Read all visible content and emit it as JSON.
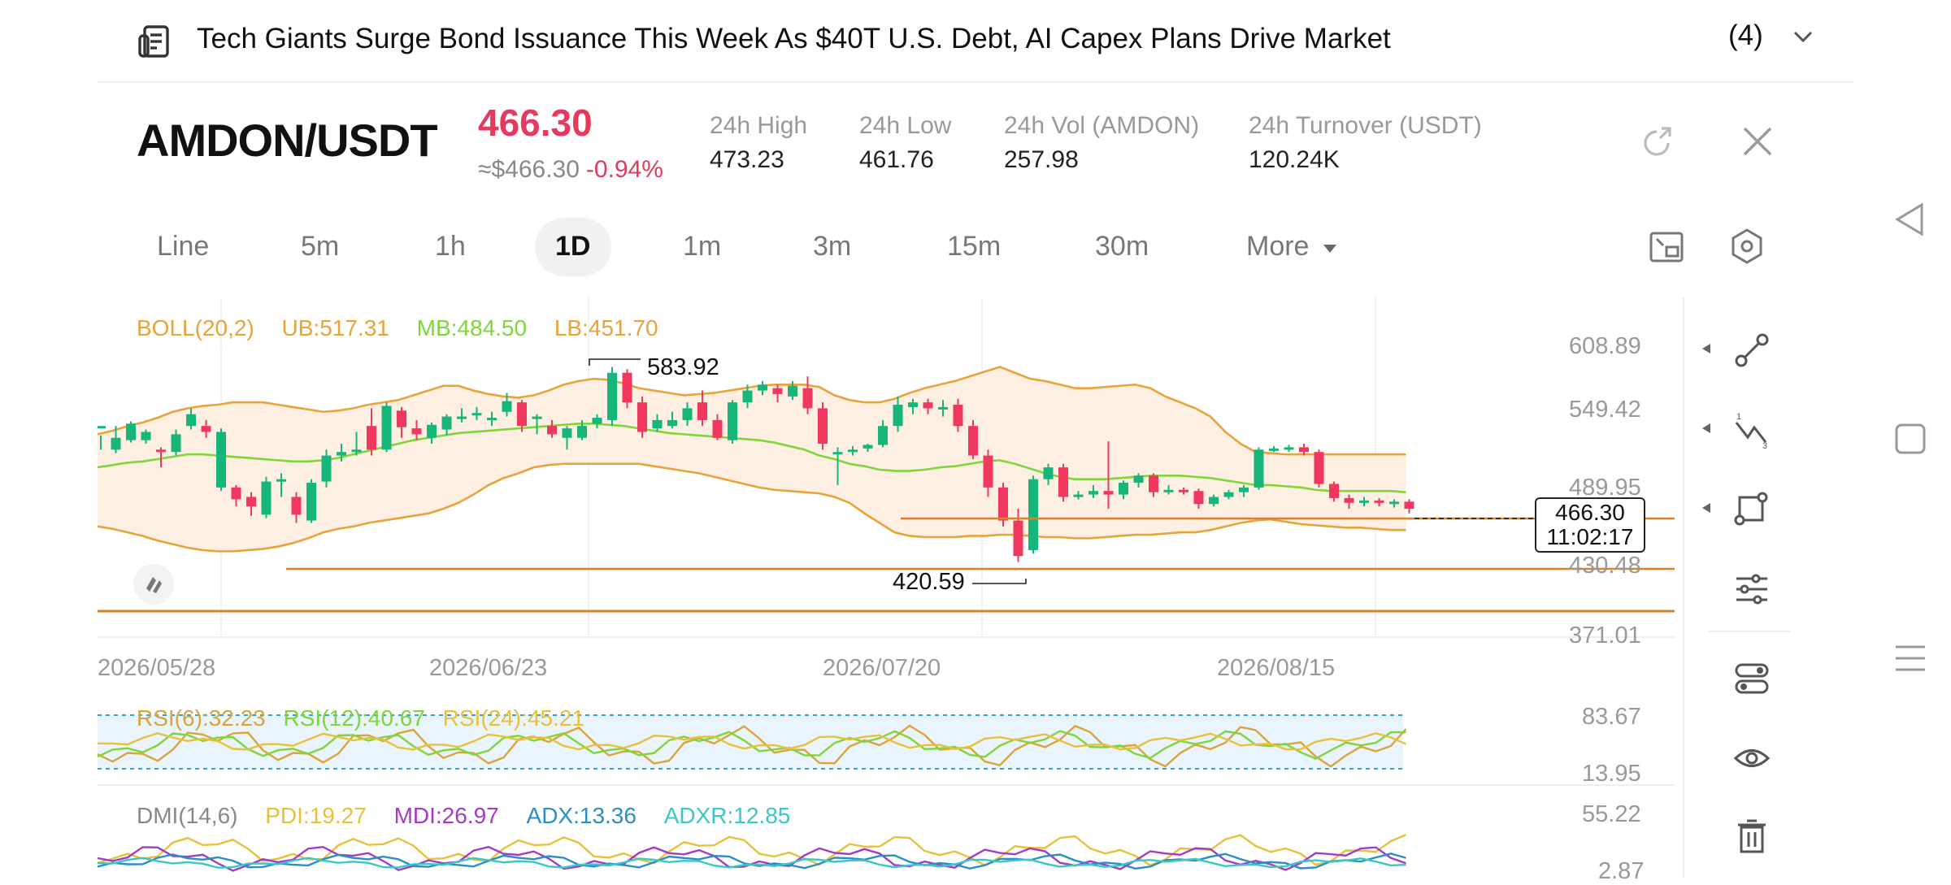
{
  "news": {
    "title": "Tech Giants Surge Bond Issuance This Week As $40T U.S. Debt, AI Capex Plans Drive Market",
    "count": "(4)"
  },
  "ticker": {
    "pair": "AMDON/USDT",
    "price": "466.30",
    "usd_price": "≈$466.30",
    "change": "-0.94%",
    "stats": [
      {
        "label": "24h   High",
        "value": "473.23"
      },
      {
        "label": "24h   Low",
        "value": "461.76"
      },
      {
        "label": "24h   Vol (AMDON)",
        "value": "257.98"
      },
      {
        "label": "24h   Turnover (USDT)",
        "value": "120.24K"
      }
    ]
  },
  "tabs": [
    "Line",
    "5m",
    "1h",
    "1D",
    "1m",
    "3m",
    "15m",
    "30m"
  ],
  "active_tab": "1D",
  "more_label": "More",
  "colors": {
    "up": "#16b57a",
    "down": "#f0385e",
    "boll_upper": "#e8a33a",
    "boll_mid": "#7ed63a",
    "boll_fill": "#fdf0e2",
    "accent_red": "#e53a5e",
    "level_line": "#d9822b"
  },
  "boll": {
    "label": "BOLL(20,2)",
    "ub": "UB:517.31",
    "mb": "MB:484.50",
    "lb": "LB:451.70"
  },
  "main_axis": [
    "608.89",
    "549.42",
    "489.95",
    "430.48",
    "371.01"
  ],
  "dates": [
    "2026/05/28",
    "2026/06/23",
    "2026/07/20",
    "2026/08/15"
  ],
  "high_marker": "583.92",
  "low_marker": "420.59",
  "current_price_box": {
    "price": "466.30",
    "countdown": "11:02:17"
  },
  "rsi": {
    "labels": [
      "RSI(6):32.23",
      "RSI(12):40.67",
      "RSI(24):45.21"
    ],
    "axis": [
      "83.67",
      "13.95"
    ]
  },
  "dmi": {
    "labels": [
      "DMI(14,6)",
      "PDI:19.27",
      "MDI:26.97",
      "ADX:13.36",
      "ADXR:12.85"
    ],
    "axis": [
      "55.22",
      "2.87"
    ]
  },
  "chart_data": {
    "type": "candlestick",
    "ylim": [
      371.01,
      608.89
    ],
    "candles": [
      [
        538,
        540,
        532,
        520
      ],
      [
        520,
        530,
        540,
        517
      ],
      [
        528,
        542,
        544,
        526
      ],
      [
        528,
        535,
        537,
        525
      ],
      [
        520,
        518,
        522,
        505
      ],
      [
        518,
        533,
        537,
        515
      ],
      [
        540,
        550,
        555,
        537
      ],
      [
        540,
        535,
        545,
        530
      ],
      [
        488,
        535,
        538,
        485
      ],
      [
        488,
        478,
        490,
        472
      ],
      [
        480,
        472,
        484,
        464
      ],
      [
        465,
        493,
        497,
        462
      ],
      [
        493,
        495,
        500,
        480
      ],
      [
        480,
        465,
        484,
        458
      ],
      [
        460,
        492,
        495,
        458
      ],
      [
        493,
        515,
        520,
        488
      ],
      [
        515,
        518,
        525,
        510
      ],
      [
        520,
        520,
        535,
        515
      ],
      [
        540,
        520,
        555,
        515
      ],
      [
        520,
        557,
        560,
        518
      ],
      [
        553,
        539,
        556,
        530
      ],
      [
        538,
        533,
        545,
        528
      ],
      [
        530,
        541,
        543,
        525
      ],
      [
        537,
        548,
        550,
        532
      ],
      [
        547,
        548,
        555,
        543
      ],
      [
        550,
        551,
        556,
        545
      ],
      [
        545,
        547,
        552,
        540
      ],
      [
        552,
        561,
        568,
        548
      ],
      [
        560,
        540,
        562,
        535
      ],
      [
        546,
        548,
        550,
        533
      ],
      [
        540,
        533,
        545,
        530
      ],
      [
        530,
        538,
        540,
        520
      ],
      [
        530,
        540,
        545,
        528
      ],
      [
        542,
        547,
        550,
        538
      ],
      [
        545,
        585,
        590,
        540
      ],
      [
        585,
        560,
        588,
        555
      ],
      [
        560,
        535,
        565,
        530
      ],
      [
        538,
        545,
        550,
        535
      ],
      [
        540,
        545,
        552,
        538
      ],
      [
        545,
        555,
        560,
        540
      ],
      [
        560,
        545,
        570,
        540
      ],
      [
        545,
        530,
        550,
        528
      ],
      [
        528,
        560,
        562,
        525
      ],
      [
        560,
        570,
        575,
        555
      ],
      [
        570,
        575,
        578,
        566
      ],
      [
        572,
        567,
        575,
        560
      ],
      [
        565,
        574,
        578,
        562
      ],
      [
        572,
        555,
        582,
        550
      ],
      [
        555,
        525,
        560,
        520
      ],
      [
        518,
        518,
        522,
        490
      ],
      [
        520,
        520,
        523,
        515
      ],
      [
        521,
        524,
        525,
        518
      ],
      [
        524,
        540,
        545,
        522
      ],
      [
        540,
        558,
        565,
        535
      ],
      [
        556,
        560,
        563,
        550
      ],
      [
        560,
        555,
        563,
        550
      ],
      [
        555,
        556,
        562,
        548
      ],
      [
        558,
        540,
        563,
        535
      ],
      [
        540,
        515,
        545,
        512
      ],
      [
        515,
        488,
        520,
        480
      ],
      [
        488,
        460,
        492,
        455
      ],
      [
        460,
        430,
        470,
        425
      ],
      [
        435,
        495,
        498,
        432
      ],
      [
        495,
        505,
        508,
        490
      ],
      [
        505,
        480,
        508,
        476
      ],
      [
        480,
        482,
        485,
        478
      ],
      [
        482,
        485,
        490,
        479
      ],
      [
        485,
        482,
        527,
        470
      ],
      [
        482,
        492,
        494,
        478
      ],
      [
        492,
        498,
        500,
        488
      ],
      [
        498,
        484,
        500,
        480
      ],
      [
        484,
        486,
        490,
        482
      ],
      [
        486,
        485,
        488,
        482
      ],
      [
        485,
        474,
        487,
        470
      ],
      [
        474,
        480,
        482,
        472
      ],
      [
        480,
        484,
        486,
        478
      ],
      [
        484,
        488,
        490,
        480
      ],
      [
        488,
        520,
        522,
        486
      ],
      [
        520,
        521,
        523,
        518
      ],
      [
        521,
        522,
        524,
        518
      ],
      [
        522,
        518,
        525,
        515
      ],
      [
        518,
        491,
        520,
        488
      ],
      [
        491,
        479,
        493,
        476
      ],
      [
        479,
        475,
        482,
        470
      ],
      [
        475,
        477,
        480,
        472
      ],
      [
        477,
        475,
        479,
        472
      ],
      [
        475,
        476,
        478,
        471
      ],
      [
        476,
        470,
        478,
        466
      ]
    ],
    "boll_upper": [
      533,
      536,
      540,
      543,
      547,
      552,
      555,
      557,
      558,
      560,
      560,
      560,
      558,
      556,
      554,
      552,
      553,
      555,
      558,
      560,
      562,
      566,
      570,
      574,
      574,
      570,
      567,
      565,
      564,
      566,
      570,
      575,
      578,
      580,
      579,
      576,
      572,
      570,
      568,
      566,
      567,
      568,
      570,
      572,
      574,
      575,
      575,
      575,
      573,
      566,
      562,
      560,
      560,
      563,
      568,
      572,
      575,
      578,
      582,
      586,
      590,
      585,
      580,
      578,
      575,
      572,
      572,
      573,
      574,
      575,
      572,
      565,
      560,
      555,
      548,
      535,
      525,
      518,
      517,
      516,
      516,
      516,
      516,
      516,
      516,
      516,
      516,
      516
    ],
    "boll_mid": [
      505,
      507,
      509,
      510,
      512,
      514,
      516,
      516,
      515,
      514,
      513,
      512,
      511,
      510,
      510,
      511,
      513,
      516,
      519,
      522,
      525,
      528,
      530,
      532,
      534,
      535,
      536,
      537,
      538,
      539,
      540,
      541,
      542,
      542,
      541,
      540,
      538,
      536,
      534,
      533,
      532,
      531,
      530,
      529,
      528,
      526,
      523,
      520,
      515,
      512,
      508,
      506,
      503,
      502,
      502,
      503,
      505,
      506,
      508,
      510,
      511,
      508,
      504,
      500,
      497,
      495,
      495,
      495,
      496,
      497,
      498,
      498,
      498,
      497,
      496,
      494,
      492,
      490,
      490,
      489,
      488,
      486,
      485,
      485,
      485,
      485,
      485,
      484
    ],
    "boll_lower": [
      455,
      453,
      450,
      447,
      443,
      440,
      437,
      435,
      434,
      434,
      435,
      436,
      438,
      441,
      445,
      450,
      453,
      455,
      458,
      460,
      462,
      464,
      466,
      470,
      475,
      482,
      490,
      496,
      500,
      505,
      507,
      508,
      508,
      508,
      508,
      508,
      508,
      506,
      504,
      502,
      500,
      497,
      494,
      491,
      488,
      486,
      485,
      484,
      483,
      480,
      475,
      466,
      458,
      450,
      447,
      446,
      446,
      446,
      447,
      447,
      448,
      448,
      447,
      446,
      446,
      445,
      445,
      446,
      447,
      448,
      448,
      449,
      450,
      450,
      452,
      455,
      458,
      460,
      461,
      459,
      457,
      456,
      455,
      454,
      454,
      453,
      452,
      452
    ]
  }
}
